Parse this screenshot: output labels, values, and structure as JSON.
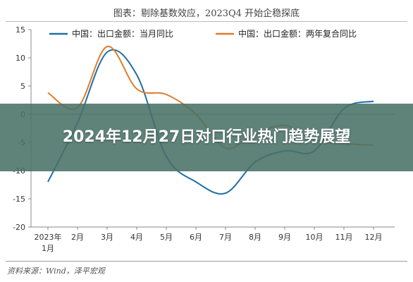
{
  "banner": {
    "text": "2024年12月27日对口行业热门趋势展望"
  },
  "source": "资料来源：Wind，泽平宏观",
  "chart_data": {
    "type": "line",
    "title": "图表：剔除基数效应，2023Q4 开始企稳探底",
    "xlabel": "",
    "ylabel": "",
    "categories": [
      "2023年1月",
      "2月",
      "3月",
      "4月",
      "5月",
      "6月",
      "7月",
      "8月",
      "9月",
      "10月",
      "11月",
      "12月"
    ],
    "ylim": [
      -20,
      15
    ],
    "yticks": [
      15,
      10,
      5,
      0,
      -5,
      -10,
      -15,
      -20
    ],
    "grid": false,
    "legend": "top",
    "series": [
      {
        "name": "中国：出口金额：当月同比",
        "color": "#1f6fa8",
        "values": [
          -12.0,
          -1.5,
          11.0,
          7.0,
          -7.5,
          -12.0,
          -14.0,
          -8.5,
          -6.5,
          -6.5,
          1.0,
          2.3
        ]
      },
      {
        "name": "中国：出口金额：两年复合同比",
        "color": "#e07b2a",
        "values": [
          3.8,
          1.2,
          12.0,
          4.5,
          3.5,
          0.0,
          -6.0,
          -3.5,
          -2.0,
          -4.5,
          -5.2,
          -5.5
        ]
      }
    ]
  }
}
